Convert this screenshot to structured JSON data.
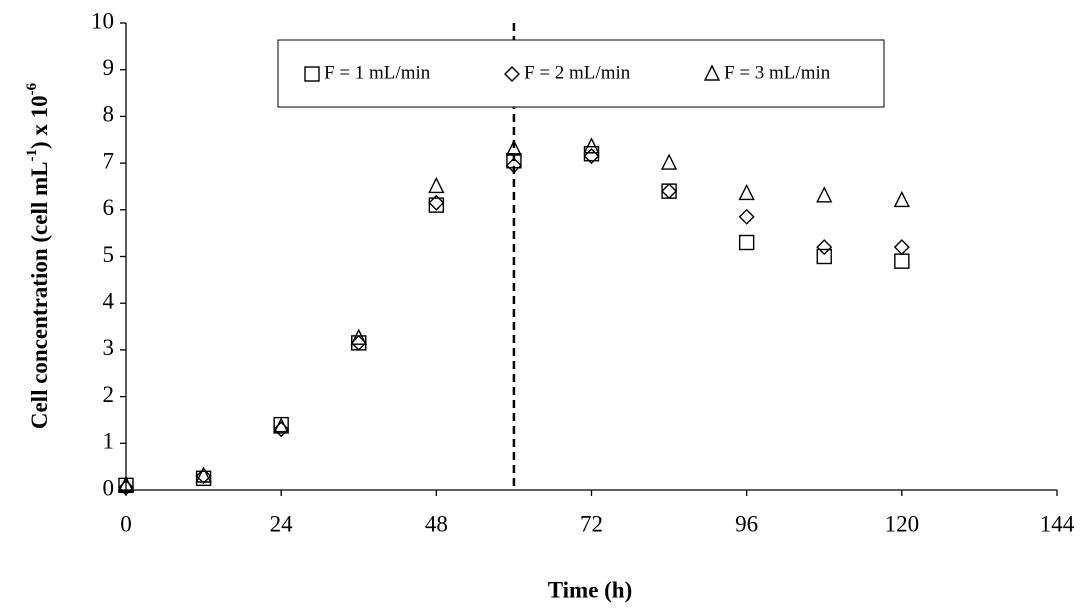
{
  "chart_data": {
    "type": "scatter",
    "xlabel": "Time (h)",
    "ylabel": [
      "Cell concentration (cell mL",
      "-1",
      ") x 10",
      "-6"
    ],
    "x": [
      0,
      12,
      24,
      36,
      48,
      60,
      72,
      84,
      96,
      108,
      120
    ],
    "series": [
      {
        "name": "F = 1 mL/min",
        "marker": "square",
        "color": "#000000",
        "values": [
          0.1,
          0.25,
          1.4,
          3.15,
          6.1,
          7.05,
          7.2,
          6.4,
          5.3,
          5.0,
          4.9
        ]
      },
      {
        "name": "F = 2 mL/min",
        "marker": "diamond",
        "color": "#000000",
        "values": [
          0.05,
          0.3,
          1.3,
          3.15,
          6.15,
          6.95,
          7.15,
          6.4,
          5.85,
          5.2,
          5.2
        ]
      },
      {
        "name": "F = 3 mL/min",
        "marker": "triangle",
        "color": "#000000",
        "values": [
          0.1,
          0.3,
          1.35,
          3.25,
          6.5,
          7.3,
          7.35,
          7.0,
          6.35,
          6.3,
          6.2
        ]
      }
    ],
    "vline_x": 60,
    "xlim": [
      0,
      144
    ],
    "xticks": [
      0,
      24,
      48,
      72,
      96,
      120,
      144
    ],
    "ylim": [
      0,
      10
    ],
    "yticks": [
      0,
      1,
      2,
      3,
      4,
      5,
      6,
      7,
      8,
      9,
      10
    ],
    "grid": false
  }
}
